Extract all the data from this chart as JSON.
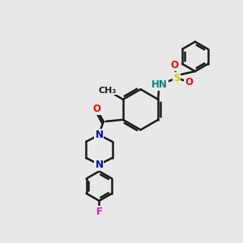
{
  "background_color": "#e8e8e8",
  "bond_color": "#1a1a1a",
  "bond_width": 1.8,
  "atom_colors": {
    "N": "#0000cc",
    "O": "#ff0000",
    "S": "#cccc00",
    "F": "#ff00ff",
    "H": "#008888",
    "C": "#1a1a1a"
  },
  "font_size": 8.5,
  "figsize": [
    3.0,
    3.0
  ],
  "dpi": 100
}
